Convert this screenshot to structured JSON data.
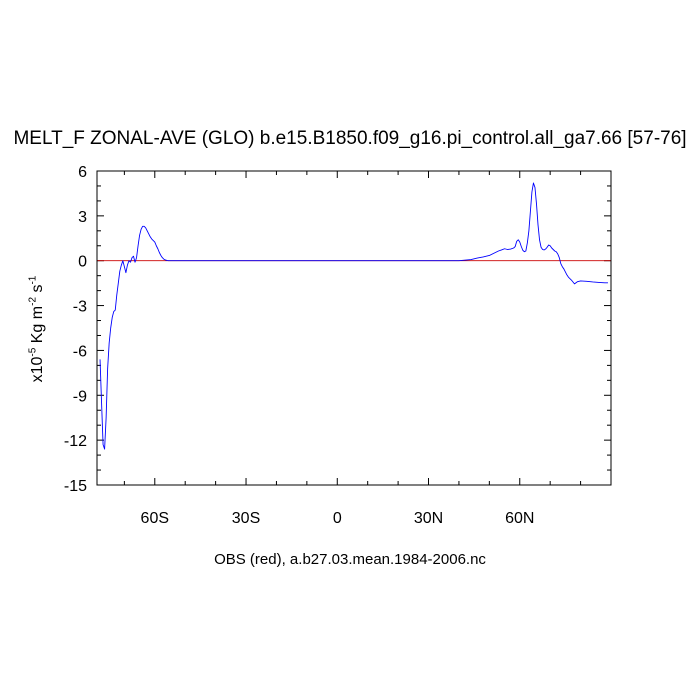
{
  "chart_data": {
    "type": "line",
    "title": "MELT_F ZONAL-AVE (GLO) b.e15.B1850.f09_g16.pi_control.all_ga7.66 [57-76]",
    "caption": "OBS (red), a.b27.03.mean.1984-2006.nc",
    "ylabel": {
      "prefix": "x10",
      "exp1": "-5",
      "mid": " Kg m",
      "exp2": "-2",
      "mid2": " s",
      "exp3": "-1"
    },
    "xlim": [
      -79,
      90
    ],
    "ylim": [
      -15,
      6
    ],
    "xticks": [
      {
        "value": -60,
        "label": "60S"
      },
      {
        "value": -30,
        "label": "30S"
      },
      {
        "value": 0,
        "label": "0"
      },
      {
        "value": 30,
        "label": "30N"
      },
      {
        "value": 60,
        "label": "60N"
      }
    ],
    "yticks": [
      {
        "value": 6,
        "label": "6"
      },
      {
        "value": 3,
        "label": "3"
      },
      {
        "value": 0,
        "label": "0"
      },
      {
        "value": -3,
        "label": "-3"
      },
      {
        "value": -6,
        "label": "-6"
      },
      {
        "value": -9,
        "label": "-9"
      },
      {
        "value": -12,
        "label": "-12"
      },
      {
        "value": -15,
        "label": "-15"
      }
    ],
    "series": [
      {
        "color": "#0000ff",
        "x": [
          -78,
          -77.5,
          -77,
          -76.5,
          -76,
          -75.5,
          -75,
          -74.5,
          -74,
          -73.5,
          -73,
          -72.5,
          -72,
          -71.5,
          -71,
          -70.5,
          -70,
          -69.5,
          -69,
          -68.5,
          -68,
          -67.5,
          -67,
          -66.5,
          -66,
          -65.5,
          -65,
          -64.5,
          -64,
          -63.5,
          -63,
          -62.5,
          -62,
          -61.5,
          -61,
          -60.5,
          -60,
          -59.5,
          -59,
          -58.5,
          -58,
          -57.5,
          -57,
          -56.5,
          -56,
          -55.5,
          -55,
          -54,
          -53,
          -50,
          -40,
          -20,
          0,
          20,
          40,
          44,
          46,
          48,
          50,
          52,
          53,
          54,
          55,
          56,
          57,
          58,
          58.5,
          59,
          59.5,
          60,
          60.5,
          61,
          61.5,
          62,
          62.5,
          63,
          63.5,
          64,
          64.5,
          65,
          65.5,
          66,
          66.5,
          67,
          67.5,
          68,
          68.5,
          69,
          69.5,
          70,
          70.5,
          71,
          71.5,
          72,
          72.5,
          73,
          73.5,
          74,
          74.5,
          75,
          75.5,
          76,
          77,
          78,
          79,
          80,
          82,
          84,
          86,
          88,
          89
        ],
        "y": [
          -6.6,
          -9.5,
          -12.3,
          -12.6,
          -10.5,
          -7.2,
          -5.5,
          -4.5,
          -3.8,
          -3.4,
          -3.3,
          -2.3,
          -1.5,
          -0.7,
          -0.3,
          0,
          -0.4,
          -0.8,
          -0.3,
          0,
          -0.1,
          0.2,
          0.3,
          -0.1,
          0.2,
          1.0,
          1.7,
          2.1,
          2.3,
          2.3,
          2.2,
          2.0,
          1.8,
          1.6,
          1.45,
          1.35,
          1.25,
          1.0,
          0.8,
          0.55,
          0.35,
          0.2,
          0.1,
          0.05,
          0.02,
          0,
          0,
          0,
          0,
          0,
          0,
          0,
          0,
          0,
          0,
          0.08,
          0.18,
          0.25,
          0.35,
          0.55,
          0.65,
          0.72,
          0.8,
          0.75,
          0.78,
          0.85,
          0.95,
          1.3,
          1.4,
          1.25,
          0.95,
          0.7,
          0.6,
          0.65,
          1.2,
          2.0,
          3.3,
          4.6,
          5.2,
          4.9,
          3.8,
          2.4,
          1.4,
          0.9,
          0.75,
          0.72,
          0.78,
          0.9,
          1.05,
          1.0,
          0.85,
          0.75,
          0.65,
          0.6,
          0.45,
          0.2,
          -0.2,
          -0.4,
          -0.55,
          -0.75,
          -0.95,
          -1.1,
          -1.3,
          -1.55,
          -1.4,
          -1.35,
          -1.38,
          -1.42,
          -1.45,
          -1.48,
          -1.48
        ]
      },
      {
        "color": "#cc0000",
        "x": [
          -79,
          90
        ],
        "y": [
          0,
          0
        ]
      }
    ]
  }
}
